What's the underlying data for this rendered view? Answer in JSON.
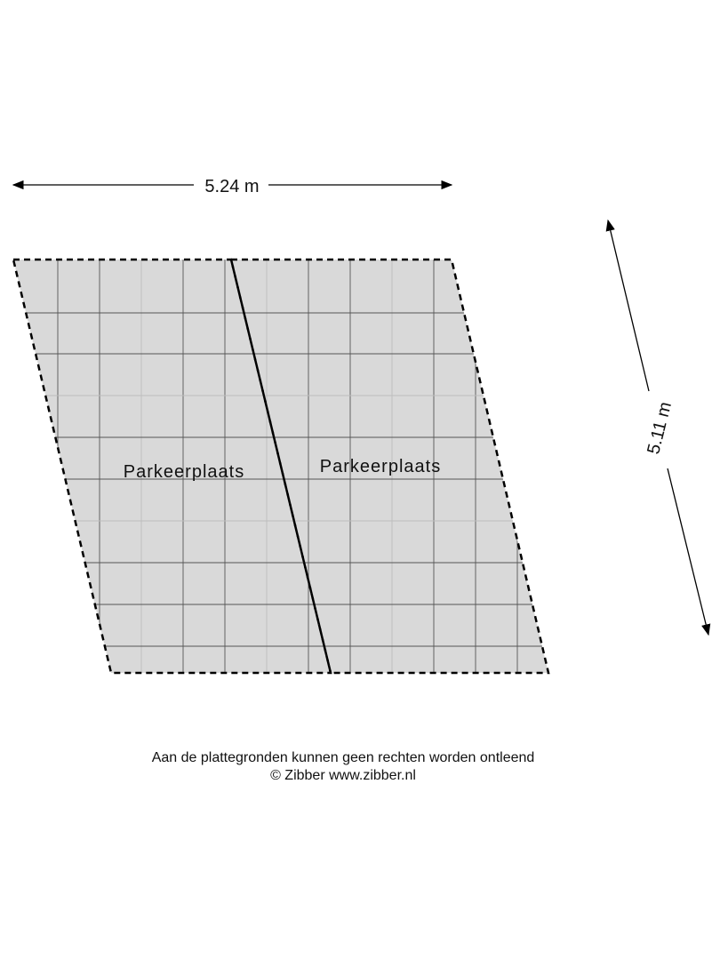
{
  "dimensions": {
    "width_label": "5.24 m",
    "depth_label": "5.11 m"
  },
  "rooms": [
    {
      "label": "Parkeerplaats"
    },
    {
      "label": "Parkeerplaats"
    }
  ],
  "footer": {
    "disclaimer": "Aan de plattegronden kunnen geen rechten worden ontleend",
    "copyright": "© Zibber www.zibber.nl"
  },
  "colors": {
    "floor_fill": "#d9d9d9",
    "grid_line": "#555555",
    "outline": "#000000"
  }
}
